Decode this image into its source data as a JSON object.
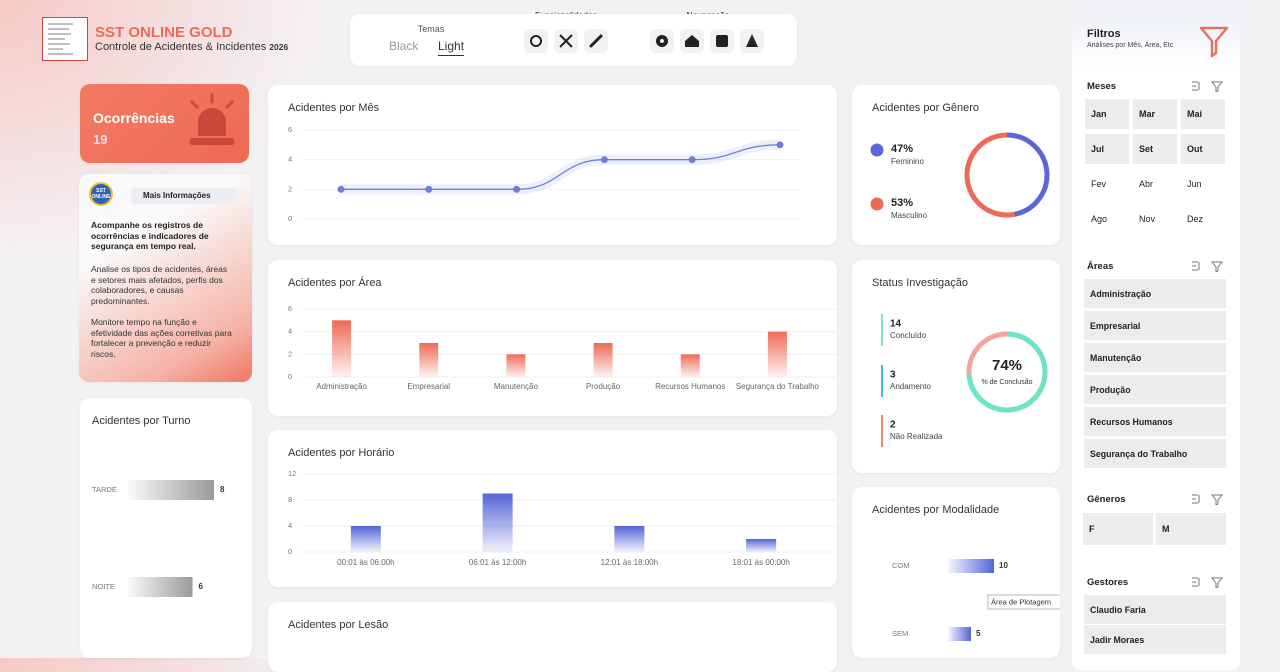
{
  "header": {
    "title": "SST ONLINE GOLD",
    "subtitle": "Controle de Acidentes & Incidentes",
    "year": "2026"
  },
  "toolbar": {
    "themes_label": "Temas",
    "themes": [
      "Black",
      "Light"
    ],
    "features_label": "Funcionalidades",
    "navigation_label": "Navegação"
  },
  "kpi": {
    "label": "Ocorrências",
    "value": 19
  },
  "info": {
    "logo": "SST ONLINE",
    "button": "Mais Informações",
    "lead": "Acompanhe os registros de ocorrências e indicadores de segurança em tempo real.",
    "paragraphs": [
      "Analise os tipos de acidentes, áreas e setores mais afetados, perfis dos colaboradores, e causas predominantes.",
      "Monitore tempo na função e efetividade das ações corretivas para fortalecer a prevenção e reduzir riscos."
    ]
  },
  "filters": {
    "title": "Filtros",
    "subtitle": "Análises por Mês, Área, Etc",
    "groups": [
      {
        "title": "Meses",
        "items": [
          "Jan",
          "Mar",
          "Mai",
          "Jul",
          "Set",
          "Out",
          "Fev",
          "Abr",
          "Jun",
          "Ago",
          "Nov",
          "Dez"
        ]
      },
      {
        "title": "Áreas",
        "items": [
          "Administração",
          "Empresarial",
          "Manutenção",
          "Produção",
          "Recursos Humanos",
          "Segurança do Trabalho"
        ]
      },
      {
        "title": "Gêneros",
        "items": [
          "F",
          "M"
        ]
      },
      {
        "title": "Gestores",
        "items": [
          "Claudio Faria",
          "Jadir Moraes"
        ]
      }
    ]
  },
  "panels": {
    "lesao": "Acidentes por Lesão"
  },
  "chart_data": [
    {
      "type": "line",
      "title": "Acidentes por Mês",
      "categories": [
        null,
        null,
        null,
        null,
        null,
        null
      ],
      "values": [
        2,
        2,
        2,
        4,
        4,
        5
      ],
      "color": "#6f7fd6",
      "ylim": [
        0,
        6
      ],
      "yticks": [
        0,
        2,
        4,
        6
      ]
    },
    {
      "type": "bar",
      "title": "Acidentes por Área",
      "categories": [
        "Administração",
        "Empresarial",
        "Manutenção",
        "Produção",
        "Recursos Humanos",
        "Segurança do Trabalho"
      ],
      "values": [
        5,
        3,
        2,
        3,
        2,
        4
      ],
      "color": "#ef6b55",
      "ylim": [
        0,
        6
      ],
      "yticks": [
        0,
        2,
        4,
        6
      ]
    },
    {
      "type": "bar",
      "title": "Acidentes por Horário",
      "categories": [
        "00:01 às 06:00h",
        "06:01 às 12:00h",
        "12:01 às 18:00h",
        "18:01 às 00:00h"
      ],
      "values": [
        4,
        9,
        4,
        2
      ],
      "color": "#5565d8",
      "ylim": [
        0,
        12
      ],
      "yticks": [
        0,
        4,
        8,
        12
      ]
    },
    {
      "type": "hbar",
      "title": "Acidentes por Turno",
      "categories": [
        "TARDE",
        "NOITE"
      ],
      "values": [
        8,
        6
      ],
      "color": "#9a9a9a"
    },
    {
      "type": "donut",
      "title": "Acidentes por Gênero",
      "categories": [
        "Feminino",
        "Masculino"
      ],
      "values": [
        47,
        53
      ],
      "value_labels": [
        "47%",
        "53%"
      ],
      "colors": [
        "#5a67d8",
        "#ee6a58"
      ]
    },
    {
      "type": "gauge",
      "title": "Status Investigação",
      "categories": [
        "Concluído",
        "Andamento",
        "Não Realizada"
      ],
      "values": [
        14,
        3,
        2
      ],
      "colors": [
        "#7ee0c8",
        "#3cc3d8",
        "#f08a70"
      ],
      "gauge_value": 74,
      "gauge_label": "74%",
      "gauge_caption": "% de Conclusão",
      "ylim": [
        0,
        100
      ],
      "color": "#6fe3c8"
    },
    {
      "type": "hbar",
      "title": "Acidentes por Modalidade",
      "categories": [
        "COM",
        "SEM"
      ],
      "values": [
        10,
        5
      ],
      "color": "#5565d8",
      "annotation": "Área de Plotagem"
    }
  ]
}
